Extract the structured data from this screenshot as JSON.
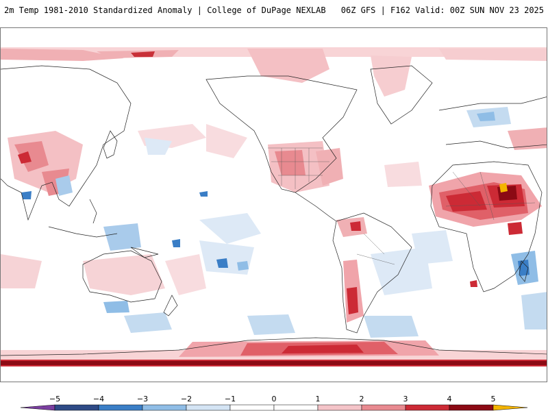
{
  "header": {
    "title": "2m Temp 1981-2010 Standardized Anomaly | College of DuPage NEXLAB",
    "run_info": "06Z GFS | F162 Valid: 00Z SUN NOV 23 2025"
  },
  "map": {
    "projection": "equirectangular",
    "center_longitude": 180,
    "variable": "2m temperature standardized anomaly",
    "anomaly_regions": [
      {
        "name": "north-africa-warm",
        "level": 4
      },
      {
        "name": "sahara-peak",
        "level": 5
      },
      {
        "name": "antarctic-coast-warm",
        "level": 3
      },
      {
        "name": "andes-warm",
        "level": 3
      },
      {
        "name": "east-africa-cool",
        "level": -3
      },
      {
        "name": "indonesia-cool",
        "level": -3
      },
      {
        "name": "arctic-warm",
        "level": 2
      }
    ]
  },
  "legend": {
    "ticks": [
      "-5",
      "-4",
      "-3",
      "-2",
      "-1",
      "0",
      "1",
      "2",
      "3",
      "4",
      "5"
    ],
    "levels": [
      -5,
      -4,
      -3,
      -2,
      -1,
      0,
      1,
      2,
      3,
      4,
      5
    ],
    "colors": [
      "#7b3fa0",
      "#2e4a86",
      "#3a7ec6",
      "#8fbde6",
      "#d4e4f4",
      "#ffffff",
      "#ffffff",
      "#f4c4c8",
      "#e88a90",
      "#cc2a35",
      "#8b0a14",
      "#f4b400"
    ]
  }
}
